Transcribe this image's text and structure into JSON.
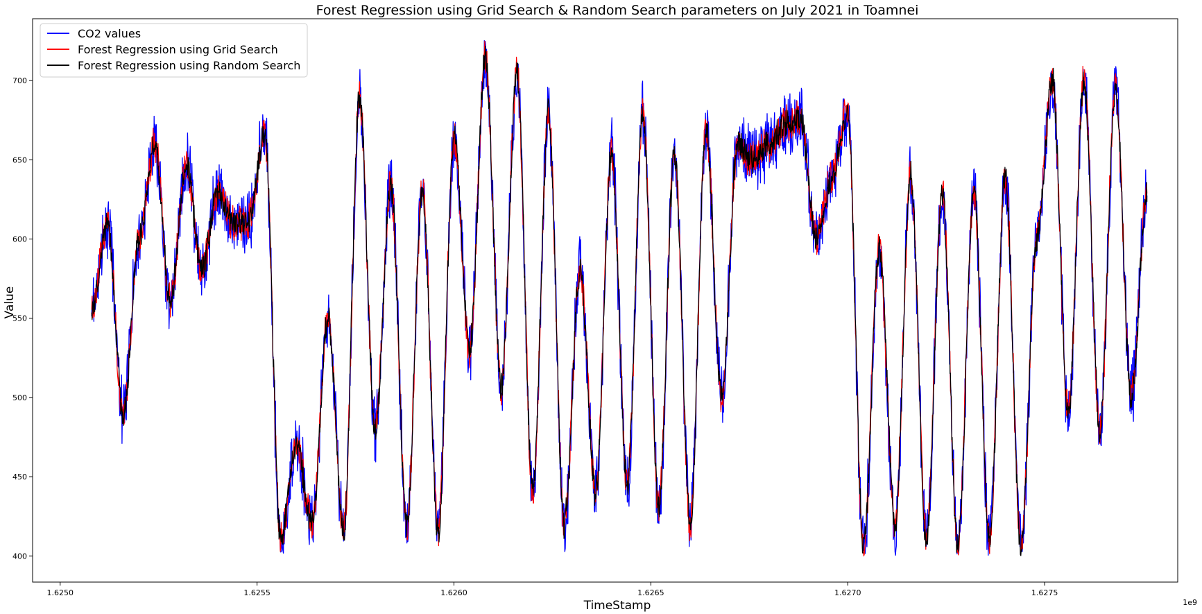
{
  "chart_data": {
    "type": "line",
    "title": "Forest Regression using Grid Search & Random Search parameters on July 2021 in Toamnei",
    "xlabel": "TimeStamp",
    "ylabel": "Value",
    "x_offset_label": "1e9",
    "xlim": [
      1.62493,
      1.627838
    ],
    "ylim": [
      383.5,
      739
    ],
    "x_ticks": [
      1.625,
      1.6255,
      1.626,
      1.6265,
      1.627,
      1.6275
    ],
    "x_tick_labels": [
      "1.6250",
      "1.6255",
      "1.6260",
      "1.6265",
      "1.6270",
      "1.6275"
    ],
    "y_ticks": [
      400,
      450,
      500,
      550,
      600,
      650,
      700
    ],
    "y_tick_labels": [
      "400",
      "450",
      "500",
      "550",
      "600",
      "650",
      "700"
    ],
    "grid": false,
    "legend_position": "upper-left",
    "colors": {
      "co2": "#0000ff",
      "grid": "#ff0000",
      "random": "#000000"
    },
    "series": [
      {
        "name": "CO2 values",
        "color": "#0000ff"
      },
      {
        "name": "Forest Regression using Grid Search",
        "color": "#ff0000"
      },
      {
        "name": "Forest Regression using Random Search",
        "color": "#000000"
      }
    ],
    "x": [
      1.62508,
      1.62512,
      1.62516,
      1.6252,
      1.62524,
      1.62528,
      1.62532,
      1.62536,
      1.6254,
      1.62544,
      1.62548,
      1.62552,
      1.62556,
      1.6256,
      1.62564,
      1.62568,
      1.62572,
      1.62576,
      1.6258,
      1.62584,
      1.62588,
      1.62592,
      1.62596,
      1.626,
      1.62604,
      1.62608,
      1.62612,
      1.62616,
      1.6262,
      1.62624,
      1.62628,
      1.62632,
      1.62636,
      1.6264,
      1.62644,
      1.62648,
      1.62652,
      1.62656,
      1.6266,
      1.62664,
      1.62668,
      1.62672,
      1.62676,
      1.6268,
      1.62684,
      1.62688,
      1.62692,
      1.62696,
      1.627,
      1.62704,
      1.62708,
      1.62712,
      1.62716,
      1.6272,
      1.62724,
      1.62728,
      1.62732,
      1.62736,
      1.6274,
      1.62744,
      1.62748,
      1.62752,
      1.62756,
      1.6276,
      1.62764,
      1.62768,
      1.62772,
      1.62776
    ],
    "values": [
      555,
      610,
      490,
      600,
      660,
      560,
      648,
      580,
      630,
      610,
      612,
      666,
      410,
      470,
      420,
      550,
      415,
      690,
      480,
      635,
      420,
      630,
      415,
      665,
      530,
      715,
      505,
      705,
      440,
      680,
      420,
      580,
      440,
      655,
      445,
      680,
      430,
      655,
      420,
      670,
      500,
      660,
      650,
      660,
      672,
      676,
      600,
      640,
      680,
      405,
      595,
      420,
      640,
      410,
      630,
      405,
      630,
      410,
      640,
      405,
      600,
      700,
      490,
      700,
      480,
      695,
      500,
      628
    ]
  }
}
